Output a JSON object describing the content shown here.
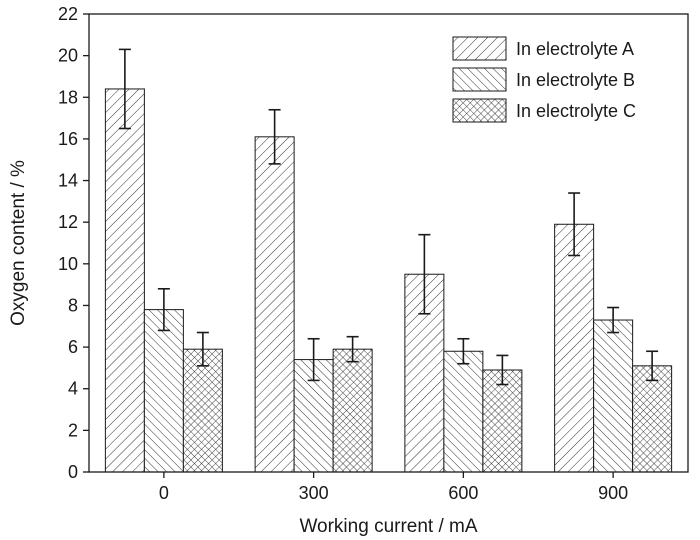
{
  "chart_data": {
    "type": "bar",
    "title": "",
    "xlabel": "Working current / mA",
    "ylabel": "Oxygen content / %",
    "categories": [
      "0",
      "300",
      "600",
      "900"
    ],
    "ylim": [
      0,
      22
    ],
    "yticks": [
      0,
      2,
      4,
      6,
      8,
      10,
      12,
      14,
      16,
      18,
      20,
      22
    ],
    "grid": false,
    "legend_position": "top-right",
    "series": [
      {
        "name": "In electrolyte A",
        "pattern": "diagonal-up",
        "values": [
          18.4,
          16.1,
          9.5,
          11.9
        ],
        "errors": [
          1.9,
          1.3,
          1.9,
          1.5
        ]
      },
      {
        "name": "In electrolyte B",
        "pattern": "diagonal-down",
        "values": [
          7.8,
          5.4,
          5.8,
          7.3
        ],
        "errors": [
          1.0,
          1.0,
          0.6,
          0.6
        ]
      },
      {
        "name": "In electrolyte C",
        "pattern": "crosshatch",
        "values": [
          5.9,
          5.9,
          4.9,
          5.1
        ],
        "errors": [
          0.8,
          0.6,
          0.7,
          0.7
        ]
      }
    ],
    "colors": {
      "bar_fill": "#ffffff",
      "stroke": "#1a1a1a",
      "hatch": "#333333"
    }
  }
}
